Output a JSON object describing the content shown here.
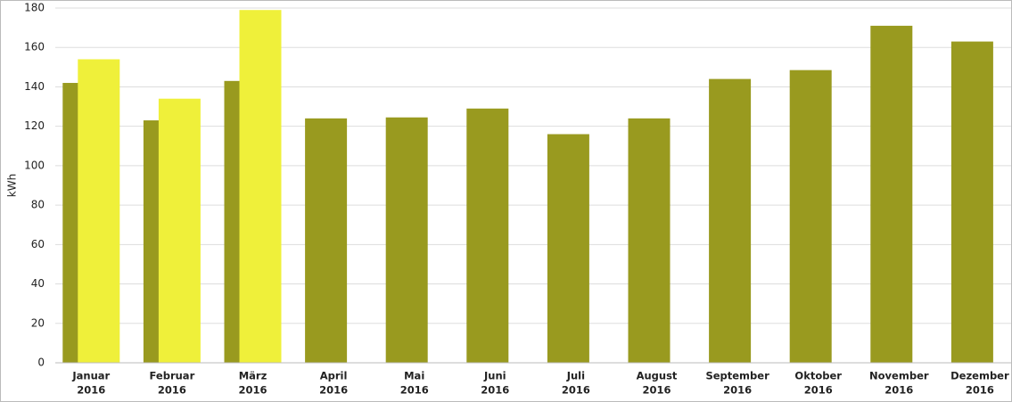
{
  "chart_data": {
    "type": "bar",
    "y_label": "kWh",
    "categories": [
      [
        "Januar",
        "2016"
      ],
      [
        "Februar",
        "2016"
      ],
      [
        "März",
        "2016"
      ],
      [
        "April",
        "2016"
      ],
      [
        "Mai",
        "2016"
      ],
      [
        "Juni",
        "2016"
      ],
      [
        "Juli",
        "2016"
      ],
      [
        "August",
        "2016"
      ],
      [
        "September",
        "2016"
      ],
      [
        "Oktober",
        "2016"
      ],
      [
        "November",
        "2016"
      ],
      [
        "Dezember",
        "2016"
      ]
    ],
    "series": [
      {
        "color": "#999a1f",
        "values": [
          142,
          123,
          143,
          124,
          124.5,
          129,
          116,
          124,
          144,
          148.5,
          171,
          163
        ]
      },
      {
        "color": "#eff03a",
        "values": [
          154,
          134,
          179,
          null,
          null,
          null,
          null,
          null,
          null,
          null,
          null,
          null
        ]
      }
    ],
    "ylim": [
      0,
      180
    ],
    "yticks": [
      0,
      20,
      40,
      60,
      80,
      100,
      120,
      140,
      160,
      180
    ],
    "grid": true
  }
}
